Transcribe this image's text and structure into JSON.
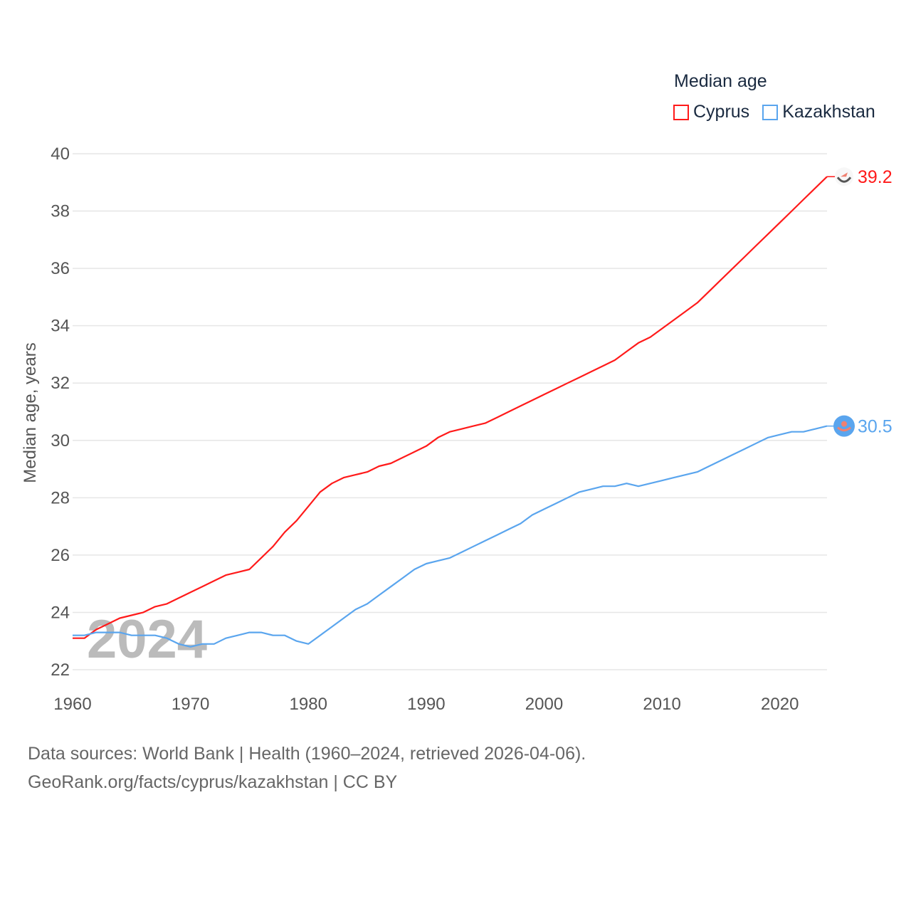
{
  "chart_data": {
    "type": "line",
    "title": "",
    "legend_title": "Median age",
    "legend_placement": "top-right",
    "xlabel": "",
    "ylabel": "Median age, years",
    "xlim": [
      1960,
      2024
    ],
    "ylim": [
      22,
      40
    ],
    "x_ticks": [
      "1960",
      "1970",
      "1980",
      "1990",
      "2000",
      "2010",
      "2020"
    ],
    "y_ticks": [
      "22",
      "24",
      "26",
      "28",
      "30",
      "32",
      "34",
      "36",
      "38",
      "40"
    ],
    "grid": true,
    "year_watermark": "2024",
    "x_start": 1960,
    "series": [
      {
        "name": "Cyprus",
        "color": "#ff1a1a",
        "end_label": "39.2",
        "values": [
          23.1,
          23.1,
          23.4,
          23.6,
          23.8,
          23.9,
          24.0,
          24.2,
          24.3,
          24.5,
          24.7,
          24.9,
          25.1,
          25.3,
          25.4,
          25.5,
          25.9,
          26.3,
          26.8,
          27.2,
          27.7,
          28.2,
          28.5,
          28.7,
          28.8,
          28.9,
          29.1,
          29.2,
          29.4,
          29.6,
          29.8,
          30.1,
          30.3,
          30.4,
          30.5,
          30.6,
          30.8,
          31.0,
          31.2,
          31.4,
          31.6,
          31.8,
          32.0,
          32.2,
          32.4,
          32.6,
          32.8,
          33.1,
          33.4,
          33.6,
          33.9,
          34.2,
          34.5,
          34.8,
          35.2,
          35.6,
          36.0,
          36.4,
          36.8,
          37.2,
          37.6,
          38.0,
          38.4,
          38.8,
          39.2
        ]
      },
      {
        "name": "Kazakhstan",
        "color": "#5aa5ee",
        "end_label": "30.5",
        "values": [
          23.2,
          23.2,
          23.3,
          23.3,
          23.3,
          23.2,
          23.2,
          23.2,
          23.1,
          22.9,
          22.8,
          22.9,
          22.9,
          23.1,
          23.2,
          23.3,
          23.3,
          23.2,
          23.2,
          23.0,
          22.9,
          23.2,
          23.5,
          23.8,
          24.1,
          24.3,
          24.6,
          24.9,
          25.2,
          25.5,
          25.7,
          25.8,
          25.9,
          26.1,
          26.3,
          26.5,
          26.7,
          26.9,
          27.1,
          27.4,
          27.6,
          27.8,
          28.0,
          28.2,
          28.3,
          28.4,
          28.4,
          28.5,
          28.4,
          28.5,
          28.6,
          28.7,
          28.8,
          28.9,
          29.1,
          29.3,
          29.5,
          29.7,
          29.9,
          30.1,
          30.2,
          30.3,
          30.3,
          30.4,
          30.5
        ]
      }
    ]
  },
  "footer": {
    "line1": "Data sources: World Bank | Health (1960–2024, retrieved 2026-04-06).",
    "line2": "GeoRank.org/facts/cyprus/kazakhstan | CC BY"
  }
}
